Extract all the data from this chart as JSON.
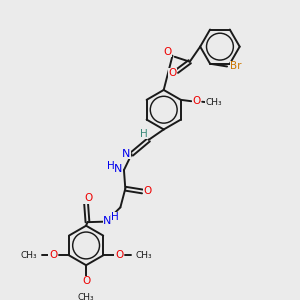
{
  "bg_color": "#ebebeb",
  "atom_colors": {
    "C": "#1a1a1a",
    "H": "#3a8a7a",
    "N": "#0000ee",
    "O": "#ee0000",
    "Br": "#cc7700"
  },
  "bond_color": "#1a1a1a",
  "bond_width": 1.4,
  "figsize": [
    3.0,
    3.0
  ],
  "dpi": 100,
  "xlim": [
    0,
    10
  ],
  "ylim": [
    0,
    10
  ]
}
